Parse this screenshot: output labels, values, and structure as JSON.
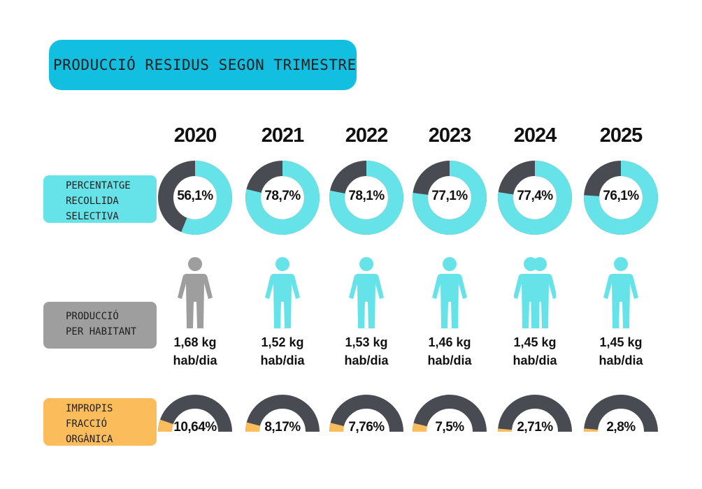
{
  "title": "PRODUCCIÓ RESIDUS SEGON TRIMESTRE",
  "labels": {
    "recollida": "PERCENTATGE\nRECOLLIDA\nSELECTIVA",
    "produccio": "PRODUCCIÓ\nPER HABITANT",
    "impropis": "IMPROPIS\nFRACCIÓ\nORGÀNICA"
  },
  "colors": {
    "teal": "#66e3e8",
    "dark": "#484b52",
    "gray": "#9e9e9e",
    "orange": "#fbbd5c",
    "title_bg": "#12bfe0"
  },
  "chart_data": [
    {
      "type": "pie",
      "title": "PERCENTATGE RECOLLIDA SELECTIVA",
      "categories": [
        "2020",
        "2021",
        "2022",
        "2023",
        "2024",
        "2025"
      ],
      "values": [
        56.1,
        78.7,
        78.1,
        77.1,
        77.4,
        76.1
      ],
      "labels": [
        "56,1%",
        "78,7%",
        "78,1%",
        "77,1%",
        "77,4%",
        "76,1%"
      ]
    },
    {
      "type": "table",
      "title": "PRODUCCIÓ PER HABITANT",
      "categories": [
        "2020",
        "2021",
        "2022",
        "2023",
        "2024",
        "2025"
      ],
      "values": [
        1.68,
        1.52,
        1.53,
        1.46,
        1.45,
        1.45
      ],
      "labels": [
        "1,68 kg",
        "1,52 kg",
        "1,53 kg",
        "1,46 kg",
        "1,45 kg",
        "1,45 kg"
      ],
      "unit": "hab/dia",
      "icon": "person-icon",
      "icon_colors": [
        "#9e9e9e",
        "#66e3e8",
        "#66e3e8",
        "#66e3e8",
        "#66e3e8",
        "#66e3e8"
      ],
      "icon_count": [
        1,
        1,
        1,
        1,
        2,
        1
      ]
    },
    {
      "type": "pie",
      "title": "IMPROPIS FRACCIÓ ORGÀNICA",
      "categories": [
        "2020",
        "2021",
        "2022",
        "2023",
        "2024",
        "2025"
      ],
      "values": [
        10.64,
        8.17,
        7.76,
        7.5,
        2.71,
        2.8
      ],
      "labels": [
        "10,64%",
        "8,17%",
        "7,76%",
        "7,5%",
        "2,71%",
        "2,8%"
      ]
    }
  ]
}
